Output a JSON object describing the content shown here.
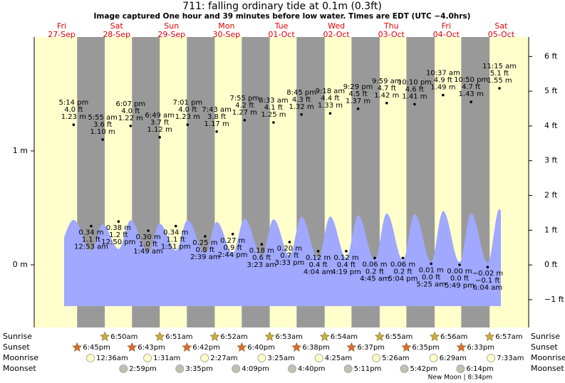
{
  "chart_data": {
    "type": "tide",
    "title": "711: falling  ordinary tide at 0.1m (0.3ft)",
    "subtitle": "Image captured One hour and 39 minutes before low water. Times are EDT (UTC −4.0hrs)",
    "ylim": [
      -0.55,
      2.0
    ],
    "yticks": [
      {
        "value": 1,
        "label": "1 m"
      },
      {
        "value": 0,
        "label": "0 m"
      }
    ],
    "y2lim": [
      -1.8,
      6.56
    ],
    "y2ticks": [
      {
        "value": 6,
        "label": "6 ft"
      },
      {
        "value": 5,
        "label": "5 ft"
      },
      {
        "value": 4,
        "label": "4 ft"
      },
      {
        "value": 3,
        "label": "3 ft"
      },
      {
        "value": 2,
        "label": "2 ft"
      },
      {
        "value": 1,
        "label": "1 ft"
      },
      {
        "value": 0,
        "label": "0 ft"
      },
      {
        "value": -1,
        "label": "−1 ft"
      }
    ],
    "colors": {
      "day": "#ffffcc",
      "night": "#999999",
      "water": "#a0a8ff",
      "sunrise": "#c8b040",
      "sunset": "#e06a30",
      "moonrise": "#ffffc8",
      "moonset": "#c0c0b4"
    },
    "row_labels": [
      "Sunrise",
      "Sunset",
      "Moonrise",
      "Moonset"
    ],
    "days": [
      {
        "weekday": "Fri",
        "date": "27-Sep",
        "sunset": "6:45pm",
        "tides": [
          {
            "time": "5:14 pm",
            "ft_label": "4.0 ft",
            "m": 1.23,
            "m_label": "1.23 m"
          }
        ]
      },
      {
        "weekday": "Sat",
        "date": "28-Sep",
        "sunrise": "6:50am",
        "sunset": "6:43pm",
        "moonrise": "12:36am",
        "moonset": "2:59pm",
        "tides": [
          {
            "time": "12:53 am",
            "ft_label": "1.1 ft",
            "m": 0.34,
            "m_label": "0.34 m"
          },
          {
            "time": "5:55 am",
            "ft_label": "3.6 ft",
            "m": 1.1,
            "m_label": "1.10 m"
          },
          {
            "time": "12:50 pm",
            "ft_label": "1.2 ft",
            "m": 0.38,
            "m_label": "0.38 m"
          },
          {
            "time": "6:07 pm",
            "ft_label": "4.0 ft",
            "m": 1.22,
            "m_label": "1.22 m"
          }
        ]
      },
      {
        "weekday": "Sun",
        "date": "29-Sep",
        "sunrise": "6:51am",
        "sunset": "6:42pm",
        "moonrise": "1:31am",
        "moonset": "3:35pm",
        "tides": [
          {
            "time": "1:49 am",
            "ft_label": "1.0 ft",
            "m": 0.3,
            "m_label": "0.30 m"
          },
          {
            "time": "6:49 am",
            "ft_label": "3.7 ft",
            "m": 1.12,
            "m_label": "1.12 m"
          },
          {
            "time": "1:51 pm",
            "ft_label": "1.1 ft",
            "m": 0.34,
            "m_label": "0.34 m"
          },
          {
            "time": "7:01 pm",
            "ft_label": "4.0 ft",
            "m": 1.23,
            "m_label": "1.23 m"
          }
        ]
      },
      {
        "weekday": "Mon",
        "date": "30-Sep",
        "sunrise": "6:52am",
        "sunset": "6:40pm",
        "moonrise": "2:27am",
        "moonset": "4:09pm",
        "tides": [
          {
            "time": "2:39 am",
            "ft_label": "0.8 ft",
            "m": 0.25,
            "m_label": "0.25 m"
          },
          {
            "time": "7:43 am",
            "ft_label": "3.8 ft",
            "m": 1.17,
            "m_label": "1.17 m"
          },
          {
            "time": "2:44 pm",
            "ft_label": "0.9 ft",
            "m": 0.27,
            "m_label": "0.27 m"
          },
          {
            "time": "7:55 pm",
            "ft_label": "4.2 ft",
            "m": 1.27,
            "m_label": "1.27 m"
          }
        ]
      },
      {
        "weekday": "Tue",
        "date": "01-Oct",
        "sunrise": "6:53am",
        "sunset": "6:38pm",
        "moonrise": "3:25am",
        "moonset": "4:40pm",
        "tides": [
          {
            "time": "3:23 am",
            "ft_label": "0.6 ft",
            "m": 0.18,
            "m_label": "0.18 m"
          },
          {
            "time": "8:33 am",
            "ft_label": "4.1 ft",
            "m": 1.25,
            "m_label": "1.25 m"
          },
          {
            "time": "3:33 pm",
            "ft_label": "0.7 ft",
            "m": 0.2,
            "m_label": "0.20 m"
          },
          {
            "time": "8:45 pm",
            "ft_label": "4.3 ft",
            "m": 1.32,
            "m_label": "1.32 m"
          }
        ]
      },
      {
        "weekday": "Wed",
        "date": "02-Oct",
        "sunrise": "6:54am",
        "sunset": "6:37pm",
        "moonrise": "4:25am",
        "moonset": "5:11pm",
        "tides": [
          {
            "time": "4:04 am",
            "ft_label": "0.4 ft",
            "m": 0.12,
            "m_label": "0.12 m"
          },
          {
            "time": "9:18 am",
            "ft_label": "4.4 ft",
            "m": 1.33,
            "m_label": "1.33 m"
          },
          {
            "time": "4:19 pm",
            "ft_label": "0.4 ft",
            "m": 0.12,
            "m_label": "0.12 m"
          },
          {
            "time": "9:29 pm",
            "ft_label": "4.5 ft",
            "m": 1.37,
            "m_label": "1.37 m"
          }
        ]
      },
      {
        "weekday": "Thu",
        "date": "03-Oct",
        "sunrise": "6:55am",
        "sunset": "6:35pm",
        "moonrise": "5:26am",
        "moonset": "5:42pm",
        "tides": [
          {
            "time": "4:45 am",
            "ft_label": "0.2 ft",
            "m": 0.06,
            "m_label": "0.06 m"
          },
          {
            "time": "9:59 am",
            "ft_label": "4.7 ft",
            "m": 1.42,
            "m_label": "1.42 m"
          },
          {
            "time": "5:04 pm",
            "ft_label": "0.2 ft",
            "m": 0.06,
            "m_label": "0.06 m"
          },
          {
            "time": "10:10 pm",
            "ft_label": "4.6 ft",
            "m": 1.41,
            "m_label": "1.41 m"
          }
        ]
      },
      {
        "weekday": "Fri",
        "date": "04-Oct",
        "sunrise": "6:56am",
        "sunset": "6:33pm",
        "moonrise": "6:29am",
        "moonset": "6:14pm",
        "moon_phase": "New Moon | 8:34pm",
        "tides": [
          {
            "time": "5:25 am",
            "ft_label": "0.0 ft",
            "m": 0.01,
            "m_label": "0.01 m"
          },
          {
            "time": "10:37 am",
            "ft_label": "4.9 ft",
            "m": 1.49,
            "m_label": "1.49 m"
          },
          {
            "time": "5:49 pm",
            "ft_label": "0.0 ft",
            "m": 0.0,
            "m_label": "0.00 m"
          },
          {
            "time": "10:50 pm",
            "ft_label": "4.7 ft",
            "m": 1.43,
            "m_label": "1.43 m"
          }
        ]
      },
      {
        "weekday": "Sat",
        "date": "05-Oct",
        "sunrise": "6:57am",
        "moonrise": "7:33am",
        "tides": [
          {
            "time": "6:04 am",
            "ft_label": "−0.1 ft",
            "m": -0.02,
            "m_label": "−0.02 m"
          },
          {
            "time": "11:15 am",
            "ft_label": "5.1 ft",
            "m": 1.55,
            "m_label": "1.55 m"
          }
        ]
      }
    ]
  }
}
